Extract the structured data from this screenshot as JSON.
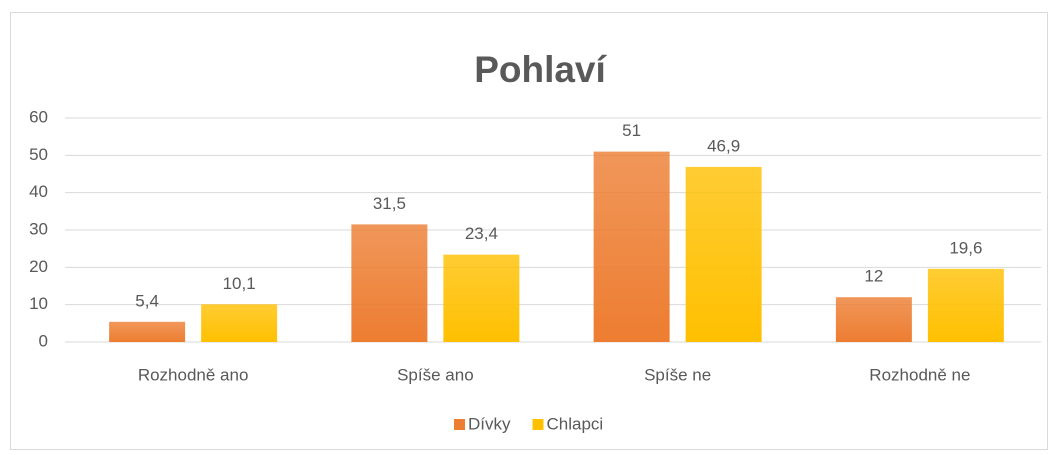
{
  "chart_data": {
    "type": "bar",
    "title": "Pohlaví",
    "categories": [
      "Rozhodně ano",
      "Spíše ano",
      "Spíše ne",
      "Rozhodně ne"
    ],
    "series": [
      {
        "name": "Dívky",
        "color": "#ED7D31",
        "values": [
          5.4,
          31.5,
          51,
          12
        ],
        "value_labels": [
          "5,4",
          "31,5",
          "51",
          "12"
        ]
      },
      {
        "name": "Chlapci",
        "color": "#FFC000",
        "values": [
          10.1,
          23.4,
          46.9,
          19.6
        ],
        "value_labels": [
          "10,1",
          "23,4",
          "46,9",
          "19,6"
        ]
      }
    ],
    "ylim": [
      0,
      60
    ],
    "yticks": [
      0,
      10,
      20,
      30,
      40,
      50,
      60
    ],
    "grid": true,
    "legend": "bottom"
  }
}
